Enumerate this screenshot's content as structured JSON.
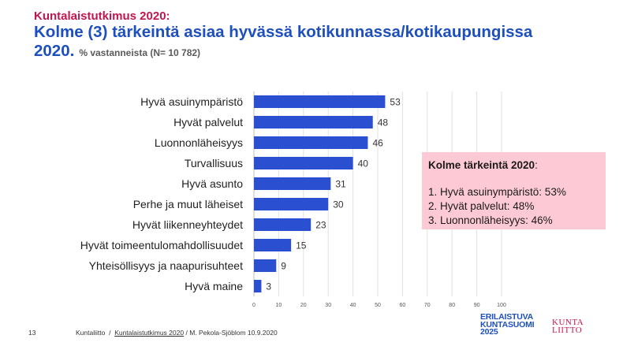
{
  "header": {
    "supertitle": "Kuntalaistutkimus 2020:",
    "title_line1": "Kolme (3) tärkeintä asiaa hyvässä kotikunnassa/kotikaupungissa",
    "title_line2": "2020.",
    "subtitle": "% vastanneista  (N= 10 782)"
  },
  "chart_data": {
    "type": "bar",
    "orientation": "horizontal",
    "categories": [
      "Hyvä asuinympäristö",
      "Hyvät palvelut",
      "Luonnonläheisyys",
      "Turvallisuus",
      "Hyvä asunto",
      "Perhe ja muut läheiset",
      "Hyvät liikenneyhteydet",
      "Hyvät toimeentulomahdollisuudet",
      "Yhteisöllisyys ja naapurisuhteet",
      "Hyvä maine"
    ],
    "values": [
      53,
      48,
      46,
      40,
      31,
      30,
      23,
      15,
      9,
      3
    ],
    "xlim": [
      0,
      100
    ],
    "xticks": [
      0,
      10,
      20,
      30,
      40,
      50,
      60,
      70,
      80,
      90,
      100
    ],
    "grid": true,
    "bar_color": "#2a4fd0"
  },
  "callout": {
    "heading": "Kolme tärkeintä 2020",
    "heading_suffix": ":",
    "items": [
      "1. Hyvä asuinympäristö: 53%",
      "2. Hyvät palvelut: 48%",
      "3. Luonnonläheisyys: 46%"
    ]
  },
  "footer": {
    "page_number": "13",
    "org": "Kuntaliitto",
    "sep1": "/",
    "link": "Kuntalaistutkimus  2020",
    "sep2": "/",
    "author_date": "M. Pekola-Sjöblom  10.9.2020"
  },
  "logos": {
    "logo1_l1": "ERILAISTUVA",
    "logo1_l2": "KUNTASUOMI",
    "logo1_l3": "2025",
    "logo2_l1": "KUNTA",
    "logo2_l2": "LIITTO"
  }
}
